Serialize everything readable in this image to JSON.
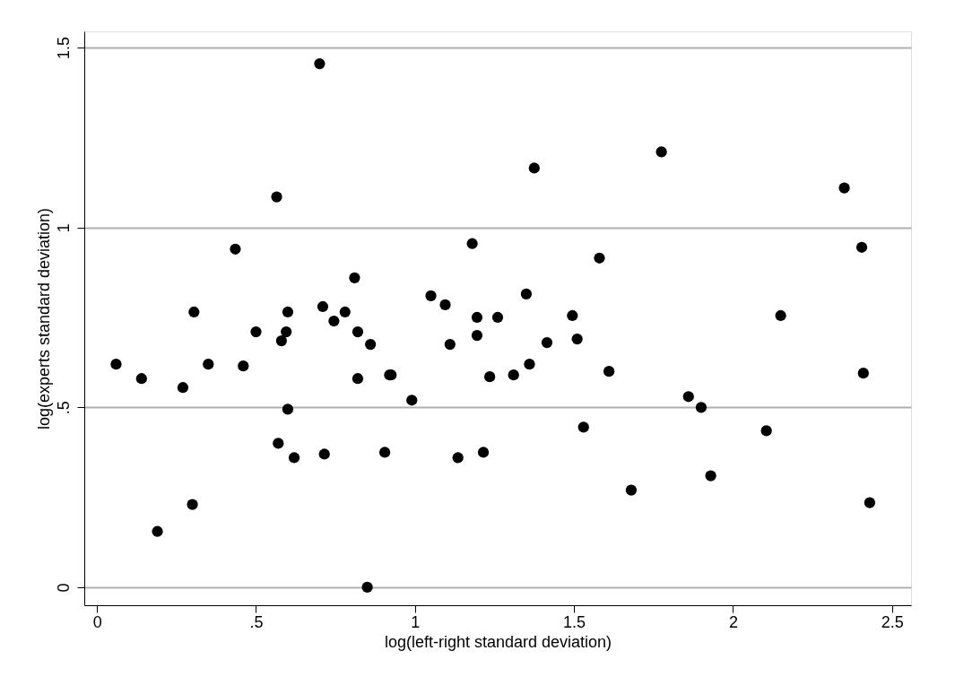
{
  "chart_data": {
    "type": "scatter",
    "xlabel": "log(left-right standard deviation)",
    "ylabel": "log(experts standard deviation)",
    "x": [
      0.06,
      0.14,
      0.19,
      0.27,
      0.3,
      0.305,
      0.35,
      0.435,
      0.46,
      0.5,
      0.565,
      0.57,
      0.58,
      0.595,
      0.6,
      0.6,
      0.62,
      0.7,
      0.71,
      0.715,
      0.745,
      0.78,
      0.81,
      0.82,
      0.82,
      0.85,
      0.86,
      0.905,
      0.92,
      0.925,
      0.99,
      1.05,
      1.095,
      1.11,
      1.135,
      1.18,
      1.195,
      1.195,
      1.215,
      1.235,
      1.26,
      1.31,
      1.35,
      1.36,
      1.375,
      1.415,
      1.495,
      1.51,
      1.53,
      1.58,
      1.61,
      1.68,
      1.775,
      1.86,
      1.9,
      1.93,
      2.105,
      2.15,
      2.35,
      2.405,
      2.41,
      2.43
    ],
    "values": [
      0.62,
      0.58,
      0.155,
      0.555,
      0.23,
      0.765,
      0.62,
      0.94,
      0.615,
      0.71,
      1.085,
      0.4,
      0.685,
      0.71,
      0.765,
      0.495,
      0.36,
      1.455,
      0.78,
      0.37,
      0.74,
      0.765,
      0.86,
      0.71,
      0.58,
      0,
      0.675,
      0.375,
      0.59,
      0.59,
      0.52,
      0.81,
      0.785,
      0.675,
      0.36,
      0.955,
      0.7,
      0.75,
      0.375,
      0.585,
      0.75,
      0.59,
      0.815,
      0.62,
      1.165,
      0.68,
      0.755,
      0.69,
      0.445,
      0.915,
      0.6,
      0.27,
      1.21,
      0.53,
      0.5,
      0.31,
      0.435,
      0.755,
      1.11,
      0.945,
      0.595,
      0.235
    ],
    "color": "#000000",
    "marker": "circle",
    "xlim": [
      -0.04,
      2.56
    ],
    "ylim": [
      -0.05,
      1.545
    ],
    "xticks": [
      0,
      {
        "value": 0.5,
        "label": ".5"
      },
      1,
      1.5,
      2,
      2.5
    ],
    "yticks": [
      0,
      {
        "value": 0.5,
        "label": ".5"
      },
      1,
      1.5
    ],
    "grid": "y"
  }
}
